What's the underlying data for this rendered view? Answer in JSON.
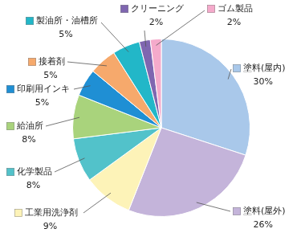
{
  "chart_data": {
    "type": "pie",
    "categories": [
      "塗料(屋内)",
      "塗料(屋外)",
      "工業用洗浄剤",
      "化学製品",
      "給油所",
      "印刷用インキ",
      "接着剤",
      "製油所・油槽所",
      "クリーニング",
      "ゴム製品"
    ],
    "values": [
      30,
      26,
      9,
      8,
      8,
      5,
      5,
      5,
      2,
      2
    ],
    "value_labels": [
      "30%",
      "26%",
      "9%",
      "8%",
      "8%",
      "5%",
      "5%",
      "5%",
      "2%",
      "2%"
    ],
    "colors": [
      "#a9c8ea",
      "#c4b4da",
      "#fdf3b8",
      "#52c2ca",
      "#a9d37c",
      "#1f8fd4",
      "#f6a96c",
      "#22b7c8",
      "#7f66b0",
      "#f5aacb"
    ],
    "data_labels": true
  }
}
